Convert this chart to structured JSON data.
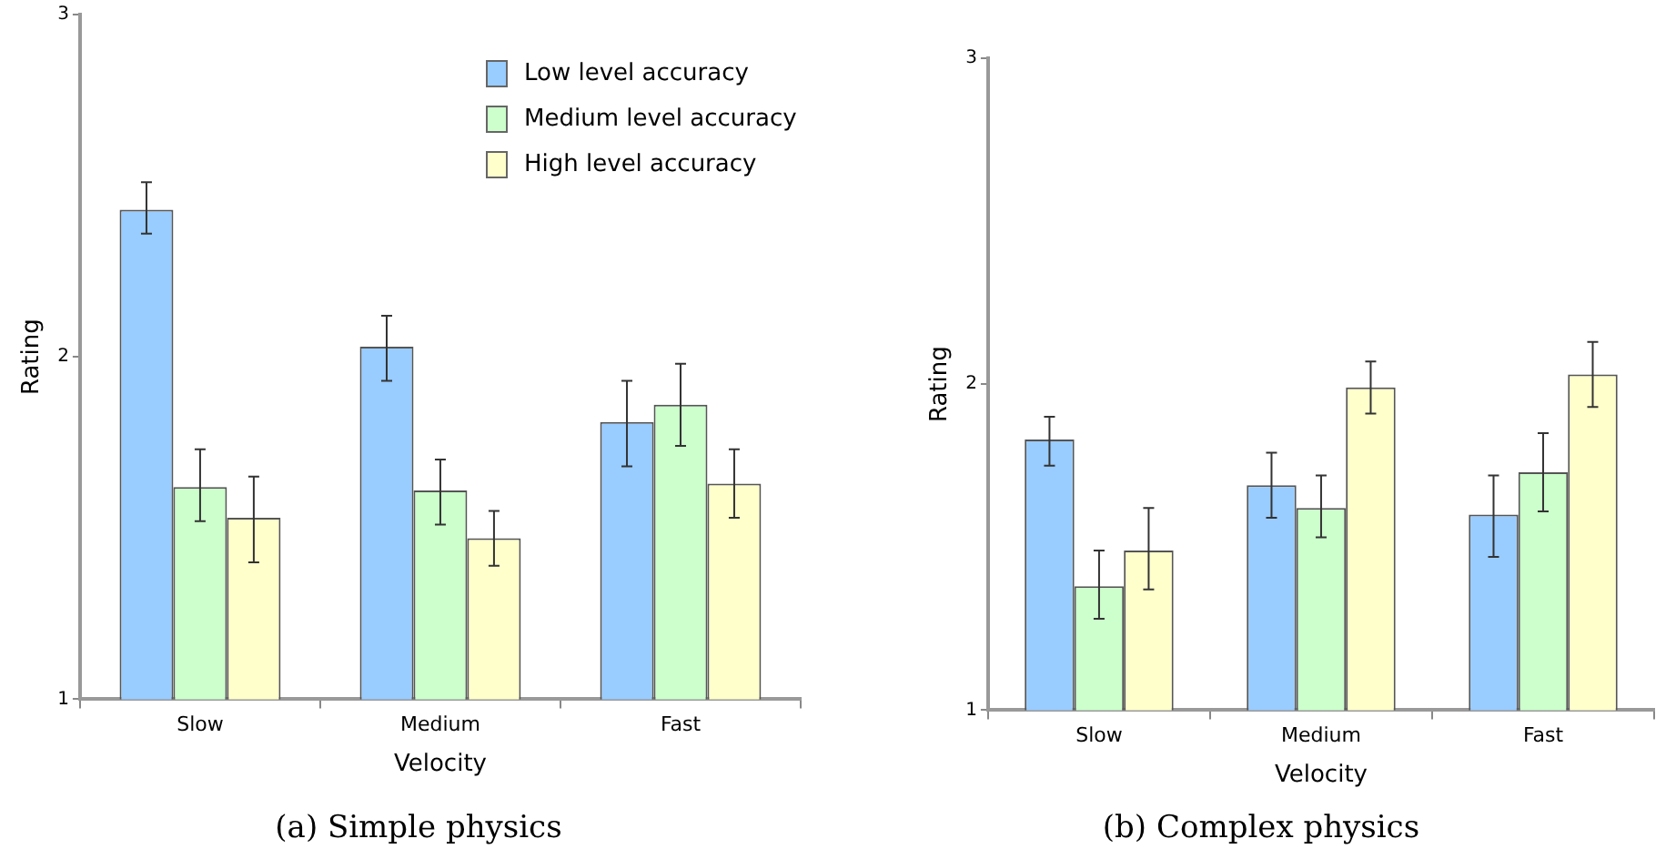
{
  "chart_data": [
    {
      "type": "bar",
      "title": "(a) Simple physics",
      "xlabel": "Velocity",
      "ylabel": "Rating",
      "categories": [
        "Slow",
        "Medium",
        "Fast"
      ],
      "ylim": [
        1,
        3
      ],
      "yticks": [
        1,
        2,
        3
      ],
      "grid": false,
      "legend": "top right",
      "series": [
        {
          "name": "Low level accuracy",
          "color": "#99ccff",
          "values": [
            2.43,
            2.03,
            1.81
          ],
          "errors": [
            [
              2.36,
              2.51
            ],
            [
              1.93,
              2.12
            ],
            [
              1.68,
              1.93
            ]
          ]
        },
        {
          "name": "Medium level accuracy",
          "color": "#ccffcc",
          "values": [
            1.62,
            1.61,
            1.86
          ],
          "errors": [
            [
              1.52,
              1.73
            ],
            [
              1.51,
              1.7
            ],
            [
              1.74,
              1.98
            ]
          ]
        },
        {
          "name": "High level accuracy",
          "color": "#ffffcc",
          "values": [
            1.53,
            1.47,
            1.63
          ],
          "errors": [
            [
              1.4,
              1.65
            ],
            [
              1.39,
              1.55
            ],
            [
              1.53,
              1.73
            ]
          ]
        }
      ]
    },
    {
      "type": "bar",
      "title": "(b) Complex physics",
      "xlabel": "Velocity",
      "ylabel": "Rating",
      "categories": [
        "Slow",
        "Medium",
        "Fast"
      ],
      "ylim": [
        1,
        3
      ],
      "yticks": [
        1,
        2,
        3
      ],
      "grid": false,
      "legend": false,
      "series": [
        {
          "color": "#99ccff",
          "values": [
            1.83,
            1.69,
            1.6
          ],
          "errors": [
            [
              1.75,
              1.9
            ],
            [
              1.59,
              1.79
            ],
            [
              1.47,
              1.72
            ]
          ]
        },
        {
          "color": "#ccffcc",
          "values": [
            1.38,
            1.62,
            1.73
          ],
          "errors": [
            [
              1.28,
              1.49
            ],
            [
              1.53,
              1.72
            ],
            [
              1.61,
              1.85
            ]
          ]
        },
        {
          "color": "#ffffcc",
          "values": [
            1.49,
            1.99,
            2.03
          ],
          "errors": [
            [
              1.37,
              1.62
            ],
            [
              1.91,
              2.07
            ],
            [
              1.93,
              2.13
            ]
          ]
        }
      ]
    }
  ]
}
